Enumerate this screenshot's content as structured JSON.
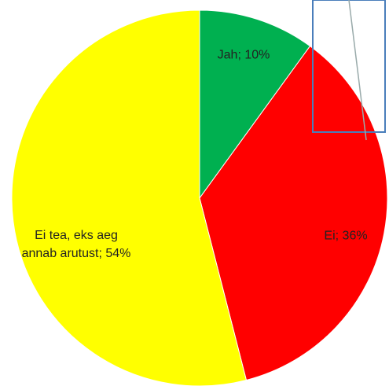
{
  "chart_data": {
    "type": "pie",
    "values": [
      10,
      36,
      54
    ],
    "value_labels": [
      "Jah; 10%",
      "Ei; 36%",
      "Ei tea, eks aeg annab arutust; 54%"
    ],
    "colors": [
      "#00b050",
      "#ff0000",
      "#ffff00"
    ]
  }
}
